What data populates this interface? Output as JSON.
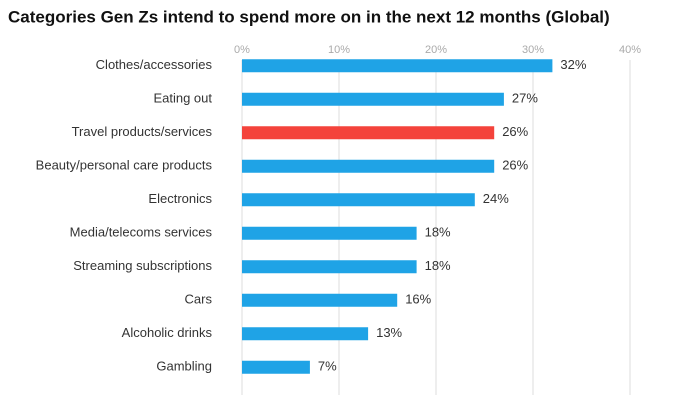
{
  "chart_data": {
    "type": "bar",
    "orientation": "horizontal",
    "title": "Categories Gen Zs intend to spend more on in the next 12 months (Global)",
    "categories": [
      "Clothes/accessories",
      "Eating out",
      "Travel products/services",
      "Beauty/personal care products",
      "Electronics",
      "Media/telecoms services",
      "Streaming subscriptions",
      "Cars",
      "Alcoholic drinks",
      "Gambling"
    ],
    "values": [
      32,
      27,
      26,
      26,
      24,
      18,
      18,
      16,
      13,
      7
    ],
    "value_labels": [
      "32%",
      "27%",
      "26%",
      "26%",
      "24%",
      "18%",
      "18%",
      "16%",
      "13%",
      "7%"
    ],
    "colors": [
      "#1fa3e6",
      "#1fa3e6",
      "#f4433b",
      "#1fa3e6",
      "#1fa3e6",
      "#1fa3e6",
      "#1fa3e6",
      "#1fa3e6",
      "#1fa3e6",
      "#1fa3e6"
    ],
    "xlim": [
      0,
      40
    ],
    "xticks": [
      {
        "value": 0,
        "label": "0%"
      },
      {
        "value": 10,
        "label": "10%"
      },
      {
        "value": 20,
        "label": "20%"
      },
      {
        "value": 30,
        "label": "30%"
      },
      {
        "value": 40,
        "label": "40%"
      }
    ],
    "grid": true
  }
}
